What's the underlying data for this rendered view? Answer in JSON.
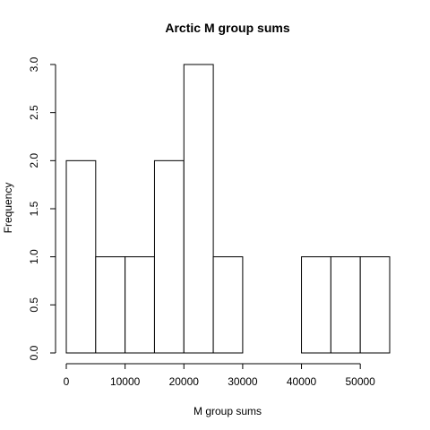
{
  "chart_data": {
    "type": "bar",
    "title": "Arctic M group sums",
    "xlabel": "M group sums",
    "ylabel": "Frequency",
    "bins": [
      {
        "start": 0,
        "end": 5000,
        "count": 2
      },
      {
        "start": 5000,
        "end": 10000,
        "count": 1
      },
      {
        "start": 10000,
        "end": 15000,
        "count": 1
      },
      {
        "start": 15000,
        "end": 20000,
        "count": 2
      },
      {
        "start": 20000,
        "end": 25000,
        "count": 3
      },
      {
        "start": 25000,
        "end": 30000,
        "count": 1
      },
      {
        "start": 30000,
        "end": 35000,
        "count": 0
      },
      {
        "start": 35000,
        "end": 40000,
        "count": 0
      },
      {
        "start": 40000,
        "end": 45000,
        "count": 1
      },
      {
        "start": 45000,
        "end": 50000,
        "count": 1
      },
      {
        "start": 50000,
        "end": 55000,
        "count": 1
      }
    ],
    "x_ticks": [
      0,
      10000,
      20000,
      30000,
      40000,
      50000
    ],
    "x_tick_labels": [
      "0",
      "10000",
      "20000",
      "30000",
      "40000",
      "50000"
    ],
    "y_ticks": [
      0,
      0.5,
      1,
      1.5,
      2,
      2.5,
      3
    ],
    "y_tick_labels": [
      "0.0",
      "0.5",
      "1.0",
      "1.5",
      "2.0",
      "2.5",
      "3.0"
    ],
    "xlim": [
      0,
      55000
    ],
    "ylim": [
      0,
      3
    ],
    "grid": false
  }
}
